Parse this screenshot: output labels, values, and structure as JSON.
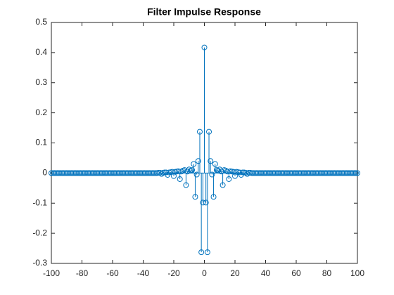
{
  "chart_data": {
    "type": "stem",
    "title": "Filter Impulse Response",
    "color": "#0072BD",
    "x": [
      -100,
      -99,
      -98,
      -97,
      -96,
      -95,
      -94,
      -93,
      -92,
      -91,
      -90,
      -89,
      -88,
      -87,
      -86,
      -85,
      -84,
      -83,
      -82,
      -81,
      -80,
      -79,
      -78,
      -77,
      -76,
      -75,
      -74,
      -73,
      -72,
      -71,
      -70,
      -69,
      -68,
      -67,
      -66,
      -65,
      -64,
      -63,
      -62,
      -61,
      -60,
      -59,
      -58,
      -57,
      -56,
      -55,
      -54,
      -53,
      -52,
      -51,
      -50,
      -49,
      -48,
      -47,
      -46,
      -45,
      -44,
      -43,
      -42,
      -41,
      -40,
      -39,
      -38,
      -37,
      -36,
      -35,
      -34,
      -33,
      -32,
      -31,
      -30,
      -29,
      -28,
      -27,
      -26,
      -25,
      -24,
      -23,
      -22,
      -21,
      -20,
      -19,
      -18,
      -17,
      -16,
      -15,
      -14,
      -13,
      -12,
      -11,
      -10,
      -9,
      -8,
      -7,
      -6,
      -5,
      -4,
      -3,
      -2,
      -1,
      0,
      1,
      2,
      3,
      4,
      5,
      6,
      7,
      8,
      9,
      10,
      11,
      12,
      13,
      14,
      15,
      16,
      17,
      18,
      19,
      20,
      21,
      22,
      23,
      24,
      25,
      26,
      27,
      28,
      29,
      30,
      31,
      32,
      33,
      34,
      35,
      36,
      37,
      38,
      39,
      40,
      41,
      42,
      43,
      44,
      45,
      46,
      47,
      48,
      49,
      50,
      51,
      52,
      53,
      54,
      55,
      56,
      57,
      58,
      59,
      60,
      61,
      62,
      63,
      64,
      65,
      66,
      67,
      68,
      69,
      70,
      71,
      72,
      73,
      74,
      75,
      76,
      77,
      78,
      79,
      80,
      81,
      82,
      83,
      84,
      85,
      86,
      87,
      88,
      89,
      90,
      91,
      92,
      93,
      94,
      95,
      96,
      97,
      98,
      99,
      100
    ],
    "values": [
      0,
      0,
      0,
      0,
      0,
      0,
      0,
      0,
      0,
      0,
      0,
      0,
      0,
      0,
      0,
      0,
      0,
      0,
      0,
      0,
      0,
      0,
      0,
      0,
      0,
      0,
      0,
      0,
      0,
      0,
      0,
      0,
      0,
      0,
      0,
      0,
      0,
      0,
      0,
      0,
      0,
      0,
      0,
      0,
      0,
      0,
      0,
      0,
      0,
      0,
      0,
      0,
      0,
      0,
      0,
      0,
      0,
      0,
      0,
      0,
      0,
      0,
      0,
      0,
      0,
      0,
      0,
      0,
      0,
      0,
      0.001,
      0.001,
      -0.003,
      0.001,
      0.002,
      0.002,
      -0.006,
      0.002,
      0.003,
      0.004,
      -0.01,
      0.004,
      0.005,
      0.006,
      -0.02,
      0.005,
      0.008,
      0.01,
      -0.04,
      0.005,
      0.012,
      0.008,
      0.01,
      0.03,
      -0.079,
      -0.005,
      0.04,
      0.137,
      -0.263,
      -0.098,
      0.417,
      -0.098,
      -0.263,
      0.137,
      0.04,
      -0.005,
      -0.079,
      0.03,
      0.01,
      0.008,
      0.012,
      0.005,
      -0.04,
      0.01,
      0.008,
      0.005,
      -0.02,
      0.006,
      0.005,
      0.004,
      -0.01,
      0.004,
      0.003,
      0.002,
      -0.006,
      0.002,
      0.002,
      0.001,
      -0.003,
      0.001,
      0.001,
      0,
      0,
      0,
      0,
      0,
      0,
      0,
      0,
      0,
      0,
      0,
      0,
      0,
      0,
      0,
      0,
      0,
      0,
      0,
      0,
      0,
      0,
      0,
      0,
      0,
      0,
      0,
      0,
      0,
      0,
      0,
      0,
      0,
      0,
      0,
      0,
      0,
      0,
      0,
      0,
      0,
      0,
      0,
      0,
      0,
      0,
      0,
      0,
      0,
      0,
      0,
      0,
      0,
      0,
      0,
      0,
      0,
      0,
      0,
      0,
      0,
      0,
      0,
      0,
      0,
      0,
      0,
      0,
      0,
      0
    ],
    "xlim": [
      -100,
      100
    ],
    "xticks": [
      -100,
      -80,
      -60,
      -40,
      -20,
      0,
      20,
      40,
      60,
      80,
      100
    ],
    "ylim": [
      -0.3,
      0.5
    ],
    "yticks": [
      -0.3,
      -0.2,
      -0.1,
      0,
      0.1,
      0.2,
      0.3,
      0.4,
      0.5
    ]
  }
}
